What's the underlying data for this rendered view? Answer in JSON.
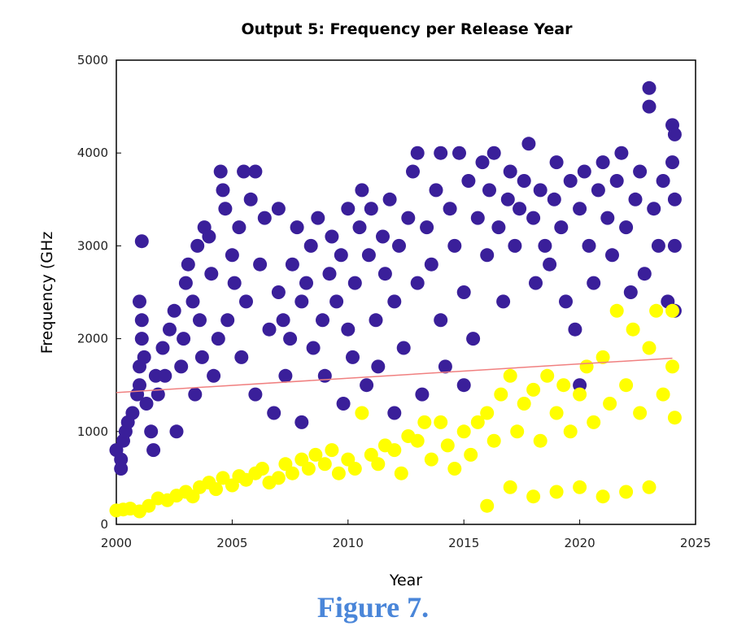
{
  "chart_data": {
    "type": "scatter",
    "title": "Output 5: Frequency per Release Year",
    "xlabel": "Year",
    "ylabel": "Frequency (GHz",
    "xlim": [
      2000,
      2025
    ],
    "ylim": [
      0,
      5000
    ],
    "xticks": [
      2000,
      2005,
      2010,
      2015,
      2020,
      2025
    ],
    "yticks": [
      0,
      1000,
      2000,
      3000,
      4000,
      5000
    ],
    "grid": false,
    "series": [
      {
        "color": "#3a1f9a",
        "points": [
          [
            2000.0,
            800
          ],
          [
            2000.2,
            700
          ],
          [
            2000.2,
            600
          ],
          [
            2000.3,
            900
          ],
          [
            2000.4,
            1000
          ],
          [
            2000.5,
            1100
          ],
          [
            2000.7,
            1200
          ],
          [
            2000.9,
            1400
          ],
          [
            2001.0,
            1500
          ],
          [
            2001.0,
            1700
          ],
          [
            2001.1,
            2000
          ],
          [
            2001.1,
            2200
          ],
          [
            2001.0,
            2400
          ],
          [
            2001.1,
            3050
          ],
          [
            2001.2,
            1800
          ],
          [
            2001.3,
            1300
          ],
          [
            2001.5,
            1000
          ],
          [
            2001.6,
            800
          ],
          [
            2001.7,
            1600
          ],
          [
            2001.8,
            1400
          ],
          [
            2002.0,
            1900
          ],
          [
            2002.1,
            1600
          ],
          [
            2002.3,
            2100
          ],
          [
            2002.5,
            2300
          ],
          [
            2002.6,
            1000
          ],
          [
            2002.8,
            1700
          ],
          [
            2002.9,
            2000
          ],
          [
            2003.0,
            2600
          ],
          [
            2003.1,
            2800
          ],
          [
            2003.3,
            2400
          ],
          [
            2003.4,
            1400
          ],
          [
            2003.5,
            3000
          ],
          [
            2003.6,
            2200
          ],
          [
            2003.7,
            1800
          ],
          [
            2003.8,
            3200
          ],
          [
            2004.0,
            3100
          ],
          [
            2004.1,
            2700
          ],
          [
            2004.2,
            1600
          ],
          [
            2004.4,
            2000
          ],
          [
            2004.5,
            3800
          ],
          [
            2004.6,
            3600
          ],
          [
            2004.7,
            3400
          ],
          [
            2004.8,
            2200
          ],
          [
            2005.0,
            2900
          ],
          [
            2005.1,
            2600
          ],
          [
            2005.3,
            3200
          ],
          [
            2005.4,
            1800
          ],
          [
            2005.5,
            3800
          ],
          [
            2005.6,
            2400
          ],
          [
            2005.8,
            3500
          ],
          [
            2006.0,
            3800
          ],
          [
            2006.0,
            1400
          ],
          [
            2006.2,
            2800
          ],
          [
            2006.4,
            3300
          ],
          [
            2006.6,
            2100
          ],
          [
            2006.8,
            1200
          ],
          [
            2007.0,
            3400
          ],
          [
            2007.0,
            2500
          ],
          [
            2007.2,
            2200
          ],
          [
            2007.3,
            1600
          ],
          [
            2007.5,
            2000
          ],
          [
            2007.6,
            2800
          ],
          [
            2007.8,
            3200
          ],
          [
            2008.0,
            2400
          ],
          [
            2008.0,
            1100
          ],
          [
            2008.2,
            2600
          ],
          [
            2008.4,
            3000
          ],
          [
            2008.5,
            1900
          ],
          [
            2008.7,
            3300
          ],
          [
            2008.9,
            2200
          ],
          [
            2009.0,
            1600
          ],
          [
            2009.2,
            2700
          ],
          [
            2009.3,
            3100
          ],
          [
            2009.5,
            2400
          ],
          [
            2009.7,
            2900
          ],
          [
            2009.8,
            1300
          ],
          [
            2010.0,
            3400
          ],
          [
            2010.0,
            2100
          ],
          [
            2010.2,
            1800
          ],
          [
            2010.3,
            2600
          ],
          [
            2010.5,
            3200
          ],
          [
            2010.6,
            3600
          ],
          [
            2010.8,
            1500
          ],
          [
            2010.9,
            2900
          ],
          [
            2011.0,
            3400
          ],
          [
            2011.2,
            2200
          ],
          [
            2011.3,
            1700
          ],
          [
            2011.5,
            3100
          ],
          [
            2011.6,
            2700
          ],
          [
            2011.8,
            3500
          ],
          [
            2012.0,
            1200
          ],
          [
            2012.0,
            2400
          ],
          [
            2012.2,
            3000
          ],
          [
            2012.4,
            1900
          ],
          [
            2012.6,
            3300
          ],
          [
            2012.8,
            3800
          ],
          [
            2013.0,
            4000
          ],
          [
            2013.0,
            2600
          ],
          [
            2013.2,
            1400
          ],
          [
            2013.4,
            3200
          ],
          [
            2013.6,
            2800
          ],
          [
            2013.8,
            3600
          ],
          [
            2014.0,
            4000
          ],
          [
            2014.0,
            2200
          ],
          [
            2014.2,
            1700
          ],
          [
            2014.4,
            3400
          ],
          [
            2014.6,
            3000
          ],
          [
            2014.8,
            4000
          ],
          [
            2015.0,
            2500
          ],
          [
            2015.0,
            1500
          ],
          [
            2015.2,
            3700
          ],
          [
            2015.4,
            2000
          ],
          [
            2015.6,
            3300
          ],
          [
            2015.8,
            3900
          ],
          [
            2016.0,
            2900
          ],
          [
            2016.1,
            3600
          ],
          [
            2016.3,
            4000
          ],
          [
            2016.5,
            3200
          ],
          [
            2016.7,
            2400
          ],
          [
            2016.9,
            3500
          ],
          [
            2017.0,
            3800
          ],
          [
            2017.2,
            3000
          ],
          [
            2017.4,
            3400
          ],
          [
            2017.6,
            3700
          ],
          [
            2017.8,
            4100
          ],
          [
            2018.0,
            3300
          ],
          [
            2018.1,
            2600
          ],
          [
            2018.3,
            3600
          ],
          [
            2018.5,
            3000
          ],
          [
            2018.7,
            2800
          ],
          [
            2018.9,
            3500
          ],
          [
            2019.0,
            3900
          ],
          [
            2019.2,
            3200
          ],
          [
            2019.4,
            2400
          ],
          [
            2019.6,
            3700
          ],
          [
            2019.8,
            2100
          ],
          [
            2020.0,
            3400
          ],
          [
            2020.0,
            1500
          ],
          [
            2020.2,
            3800
          ],
          [
            2020.4,
            3000
          ],
          [
            2020.6,
            2600
          ],
          [
            2020.8,
            3600
          ],
          [
            2021.0,
            3900
          ],
          [
            2021.2,
            3300
          ],
          [
            2021.4,
            2900
          ],
          [
            2021.6,
            3700
          ],
          [
            2021.8,
            4000
          ],
          [
            2022.0,
            3200
          ],
          [
            2022.2,
            2500
          ],
          [
            2022.4,
            3500
          ],
          [
            2022.6,
            3800
          ],
          [
            2022.8,
            2700
          ],
          [
            2023.0,
            4500
          ],
          [
            2023.0,
            4700
          ],
          [
            2023.2,
            3400
          ],
          [
            2023.4,
            3000
          ],
          [
            2023.6,
            3700
          ],
          [
            2023.8,
            2400
          ],
          [
            2024.0,
            3900
          ],
          [
            2024.0,
            4300
          ],
          [
            2024.1,
            4200
          ],
          [
            2024.1,
            3500
          ],
          [
            2024.1,
            3000
          ],
          [
            2024.1,
            2300
          ]
        ]
      },
      {
        "color": "#ffff00",
        "points": [
          [
            2000.0,
            150
          ],
          [
            2000.3,
            160
          ],
          [
            2000.6,
            170
          ],
          [
            2001.0,
            140
          ],
          [
            2001.4,
            200
          ],
          [
            2001.8,
            280
          ],
          [
            2002.2,
            260
          ],
          [
            2002.6,
            310
          ],
          [
            2003.0,
            350
          ],
          [
            2003.3,
            300
          ],
          [
            2003.6,
            400
          ],
          [
            2004.0,
            450
          ],
          [
            2004.3,
            380
          ],
          [
            2004.6,
            500
          ],
          [
            2005.0,
            420
          ],
          [
            2005.3,
            520
          ],
          [
            2005.6,
            480
          ],
          [
            2006.0,
            550
          ],
          [
            2006.3,
            600
          ],
          [
            2006.6,
            450
          ],
          [
            2007.0,
            500
          ],
          [
            2007.3,
            650
          ],
          [
            2007.6,
            550
          ],
          [
            2008.0,
            700
          ],
          [
            2008.3,
            600
          ],
          [
            2008.6,
            750
          ],
          [
            2009.0,
            650
          ],
          [
            2009.3,
            800
          ],
          [
            2009.6,
            550
          ],
          [
            2010.0,
            700
          ],
          [
            2010.3,
            600
          ],
          [
            2010.6,
            1200
          ],
          [
            2011.0,
            750
          ],
          [
            2011.3,
            650
          ],
          [
            2011.6,
            850
          ],
          [
            2012.0,
            800
          ],
          [
            2012.3,
            550
          ],
          [
            2012.6,
            950
          ],
          [
            2013.0,
            900
          ],
          [
            2013.3,
            1100
          ],
          [
            2013.6,
            700
          ],
          [
            2014.0,
            1100
          ],
          [
            2014.3,
            850
          ],
          [
            2014.6,
            600
          ],
          [
            2015.0,
            1000
          ],
          [
            2015.3,
            750
          ],
          [
            2015.6,
            1100
          ],
          [
            2016.0,
            1200
          ],
          [
            2016.3,
            900
          ],
          [
            2016.6,
            1400
          ],
          [
            2017.0,
            1600
          ],
          [
            2017.3,
            1000
          ],
          [
            2017.6,
            1300
          ],
          [
            2018.0,
            1450
          ],
          [
            2018.3,
            900
          ],
          [
            2018.6,
            1600
          ],
          [
            2019.0,
            1200
          ],
          [
            2019.3,
            1500
          ],
          [
            2019.6,
            1000
          ],
          [
            2020.0,
            1400
          ],
          [
            2020.3,
            1700
          ],
          [
            2020.6,
            1100
          ],
          [
            2021.0,
            1800
          ],
          [
            2021.3,
            1300
          ],
          [
            2021.6,
            2300
          ],
          [
            2022.0,
            1500
          ],
          [
            2022.3,
            2100
          ],
          [
            2022.6,
            1200
          ],
          [
            2023.0,
            1900
          ],
          [
            2023.3,
            2300
          ],
          [
            2023.6,
            1400
          ],
          [
            2024.0,
            2300
          ],
          [
            2024.0,
            1700
          ],
          [
            2024.1,
            1150
          ],
          [
            2016.0,
            200
          ],
          [
            2017.0,
            400
          ],
          [
            2018.0,
            300
          ],
          [
            2019.0,
            350
          ],
          [
            2020.0,
            400
          ],
          [
            2021.0,
            300
          ],
          [
            2022.0,
            350
          ],
          [
            2023.0,
            400
          ]
        ]
      }
    ],
    "trendline": {
      "color": "#f08080",
      "from": [
        2000,
        1420
      ],
      "to": [
        2024,
        1790
      ]
    }
  },
  "caption": "Figure 7."
}
